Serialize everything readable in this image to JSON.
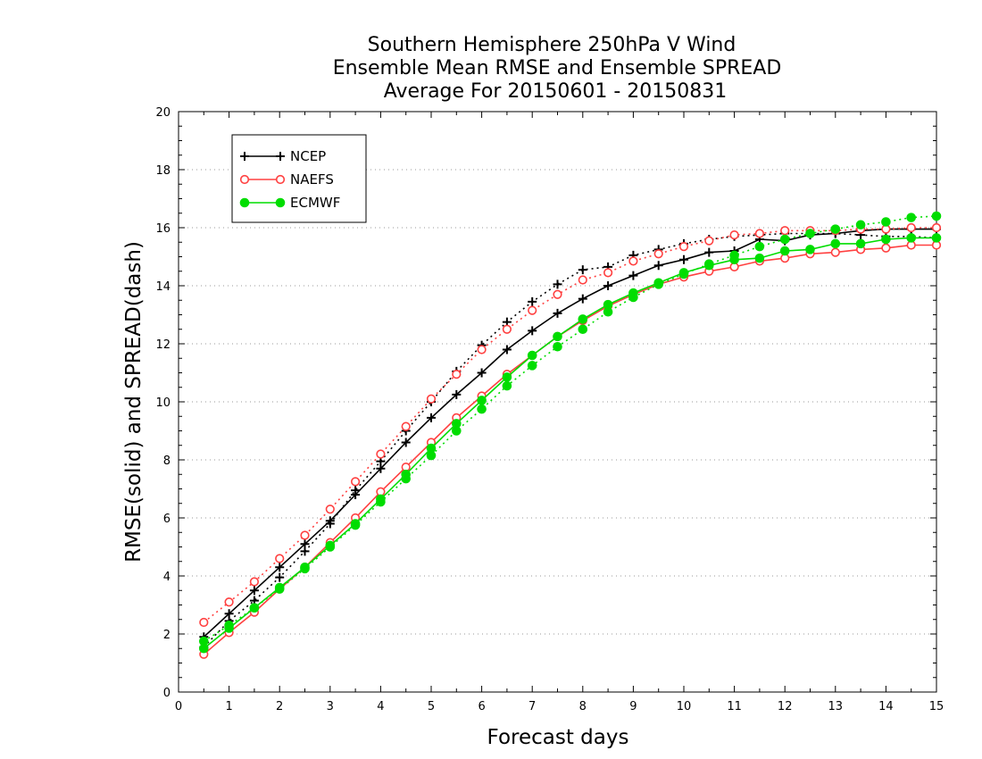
{
  "chart_data": {
    "type": "line",
    "title_lines": [
      "Southern Hemisphere 250hPa V Wind",
      "Ensemble Mean RMSE and Ensemble SPREAD",
      "Average For 20150601 - 20150831"
    ],
    "xlabel": "Forecast days",
    "ylabel": "RMSE(solid) and SPREAD(dash)",
    "xlim": [
      0,
      15
    ],
    "ylim": [
      0,
      20
    ],
    "xticks": [
      "0",
      "1",
      "2",
      "3",
      "4",
      "5",
      "6",
      "7",
      "8",
      "9",
      "10",
      "11",
      "12",
      "13",
      "14",
      "15"
    ],
    "yticks": [
      "0",
      "2",
      "4",
      "6",
      "8",
      "10",
      "12",
      "14",
      "16",
      "18",
      "20"
    ],
    "grid": true,
    "legend_position": "top-left",
    "x": [
      0.5,
      1,
      1.5,
      2,
      2.5,
      3,
      3.5,
      4,
      4.5,
      5,
      5.5,
      6,
      6.5,
      7,
      7.5,
      8,
      8.5,
      9,
      9.5,
      10,
      10.5,
      11,
      11.5,
      12,
      12.5,
      13,
      13.5,
      14,
      14.5,
      15
    ],
    "series": [
      {
        "name": "NCEP",
        "color": "#000000",
        "marker": "plus",
        "rmse": [
          1.9,
          2.7,
          3.5,
          4.3,
          5.1,
          5.9,
          6.8,
          7.7,
          8.6,
          9.45,
          10.25,
          11.0,
          11.8,
          12.45,
          13.05,
          13.55,
          14.0,
          14.35,
          14.7,
          14.9,
          15.15,
          15.2,
          15.6,
          15.55,
          15.75,
          15.8,
          15.9,
          15.95,
          15.95,
          15.95
        ],
        "spread": [
          1.55,
          2.45,
          3.15,
          3.95,
          4.85,
          5.8,
          6.95,
          7.95,
          9.0,
          10.0,
          11.05,
          11.95,
          12.75,
          13.45,
          14.05,
          14.55,
          14.65,
          15.05,
          15.25,
          15.45,
          15.6,
          15.7,
          15.75,
          15.8,
          15.8,
          15.8,
          15.75,
          15.7,
          15.7,
          15.65
        ]
      },
      {
        "name": "NAEFS",
        "color": "#ff4040",
        "marker": "circle-open",
        "rmse": [
          1.3,
          2.05,
          2.75,
          3.55,
          4.3,
          5.15,
          6.0,
          6.9,
          7.75,
          8.6,
          9.45,
          10.2,
          10.95,
          11.6,
          12.25,
          12.8,
          13.3,
          13.7,
          14.05,
          14.3,
          14.5,
          14.65,
          14.85,
          14.95,
          15.1,
          15.15,
          15.25,
          15.3,
          15.4,
          15.4
        ],
        "spread": [
          2.4,
          3.1,
          3.8,
          4.6,
          5.4,
          6.3,
          7.25,
          8.2,
          9.15,
          10.1,
          10.95,
          11.8,
          12.5,
          13.15,
          13.7,
          14.2,
          14.45,
          14.85,
          15.1,
          15.35,
          15.55,
          15.75,
          15.8,
          15.9,
          15.9,
          15.9,
          15.95,
          15.95,
          16.0,
          16.0
        ]
      },
      {
        "name": "ECMWF",
        "color": "#00dd00",
        "marker": "circle-filled",
        "rmse": [
          1.5,
          2.2,
          2.9,
          3.6,
          4.3,
          5.05,
          5.8,
          6.65,
          7.5,
          8.4,
          9.25,
          10.05,
          10.85,
          11.6,
          12.25,
          12.85,
          13.35,
          13.75,
          14.1,
          14.45,
          14.7,
          14.9,
          14.95,
          15.2,
          15.25,
          15.45,
          15.45,
          15.6,
          15.65,
          15.65
        ],
        "spread": [
          1.75,
          2.3,
          2.9,
          3.55,
          4.25,
          5.0,
          5.75,
          6.55,
          7.35,
          8.15,
          9.0,
          9.75,
          10.55,
          11.25,
          11.9,
          12.5,
          13.1,
          13.6,
          14.05,
          14.4,
          14.75,
          15.05,
          15.35,
          15.6,
          15.8,
          15.95,
          16.1,
          16.2,
          16.35,
          16.4
        ]
      }
    ]
  }
}
